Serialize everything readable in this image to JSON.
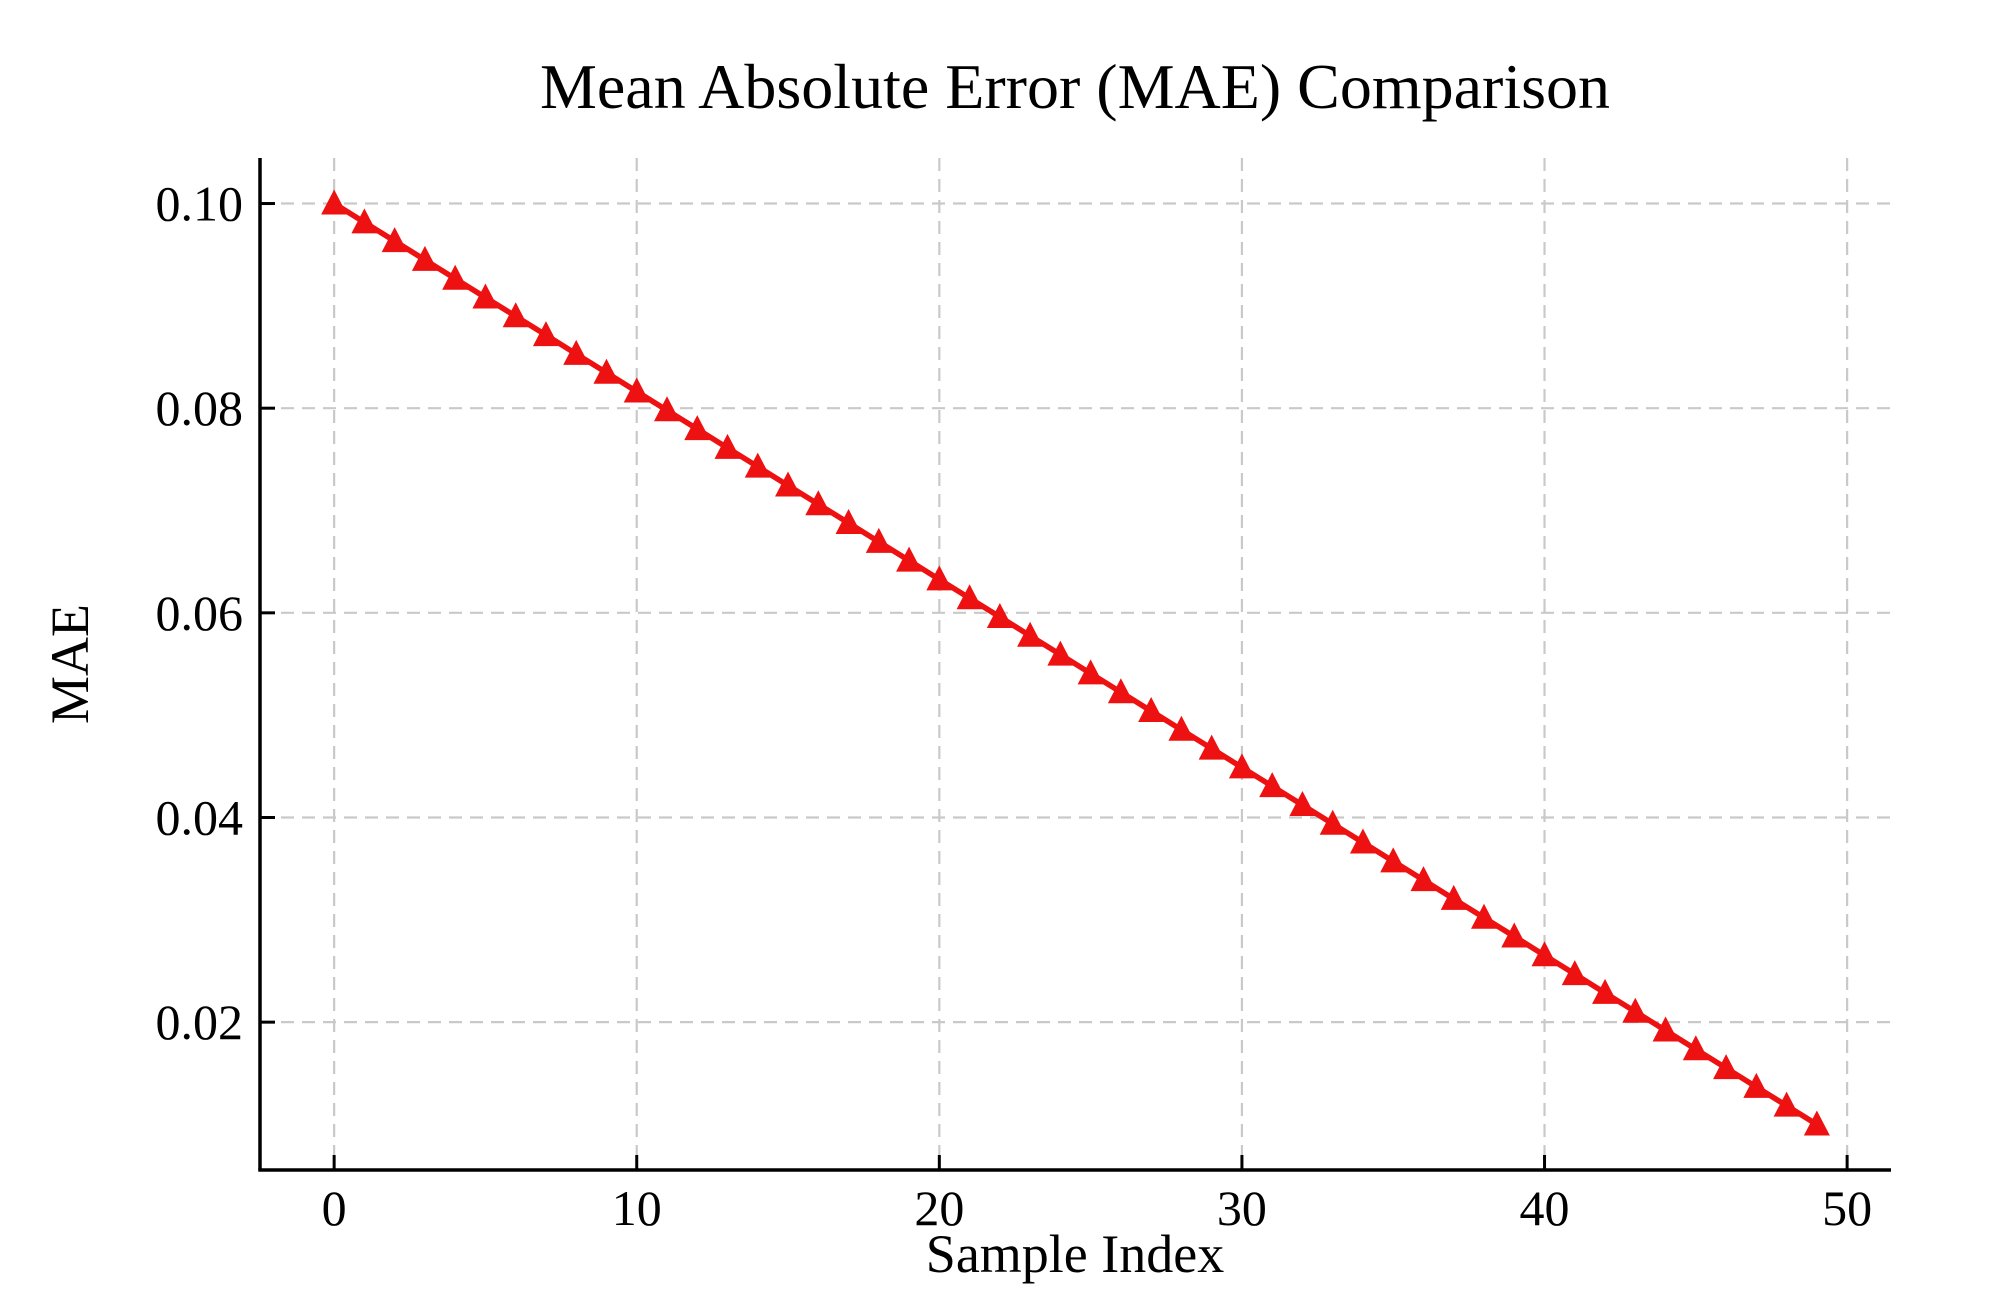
{
  "figure": {
    "background": "#ffffff",
    "text_color": "#000000"
  },
  "chart_data": {
    "type": "line",
    "title": "Mean Absolute Error (MAE) Comparison",
    "xlabel": "Sample Index",
    "ylabel": "MAE",
    "legend_position": "none",
    "grid": {
      "visible": true,
      "style": "dashed",
      "color": "#c9c9c9"
    },
    "axis_color": "#000000",
    "spines": {
      "left": true,
      "bottom": true,
      "top": false,
      "right": false
    },
    "tick_direction": "in",
    "xlim": [
      -2.45,
      51.45
    ],
    "ylim": [
      0.00555,
      0.10445
    ],
    "xticks": [
      0,
      10,
      20,
      30,
      40,
      50
    ],
    "xtick_labels": [
      "0",
      "10",
      "20",
      "30",
      "40",
      "50"
    ],
    "yticks": [
      0.02,
      0.04,
      0.06,
      0.08,
      0.1
    ],
    "ytick_labels": [
      "0.02",
      "0.04",
      "0.06",
      "0.08",
      "0.10"
    ],
    "series": [
      {
        "name": "MAE",
        "color": "#ee1111",
        "marker": "triangle-up",
        "line_width": 5.5,
        "x": [
          0,
          1,
          2,
          3,
          4,
          5,
          6,
          7,
          8,
          9,
          10,
          11,
          12,
          13,
          14,
          15,
          16,
          17,
          18,
          19,
          20,
          21,
          22,
          23,
          24,
          25,
          26,
          27,
          28,
          29,
          30,
          31,
          32,
          33,
          34,
          35,
          36,
          37,
          38,
          39,
          40,
          41,
          42,
          43,
          44,
          45,
          46,
          47,
          48,
          49
        ],
        "values": [
          0.1,
          0.098163,
          0.096327,
          0.09449,
          0.092653,
          0.090816,
          0.08898,
          0.087143,
          0.085306,
          0.083469,
          0.081633,
          0.079796,
          0.077959,
          0.076122,
          0.074286,
          0.072449,
          0.070612,
          0.068776,
          0.066939,
          0.065102,
          0.063265,
          0.061429,
          0.059592,
          0.057755,
          0.055918,
          0.054082,
          0.052245,
          0.050408,
          0.048571,
          0.046735,
          0.044898,
          0.043061,
          0.041224,
          0.039388,
          0.037551,
          0.035714,
          0.033878,
          0.032041,
          0.030204,
          0.028367,
          0.026531,
          0.024694,
          0.022857,
          0.02102,
          0.019184,
          0.017347,
          0.01551,
          0.013673,
          0.011837,
          0.01
        ]
      }
    ]
  }
}
